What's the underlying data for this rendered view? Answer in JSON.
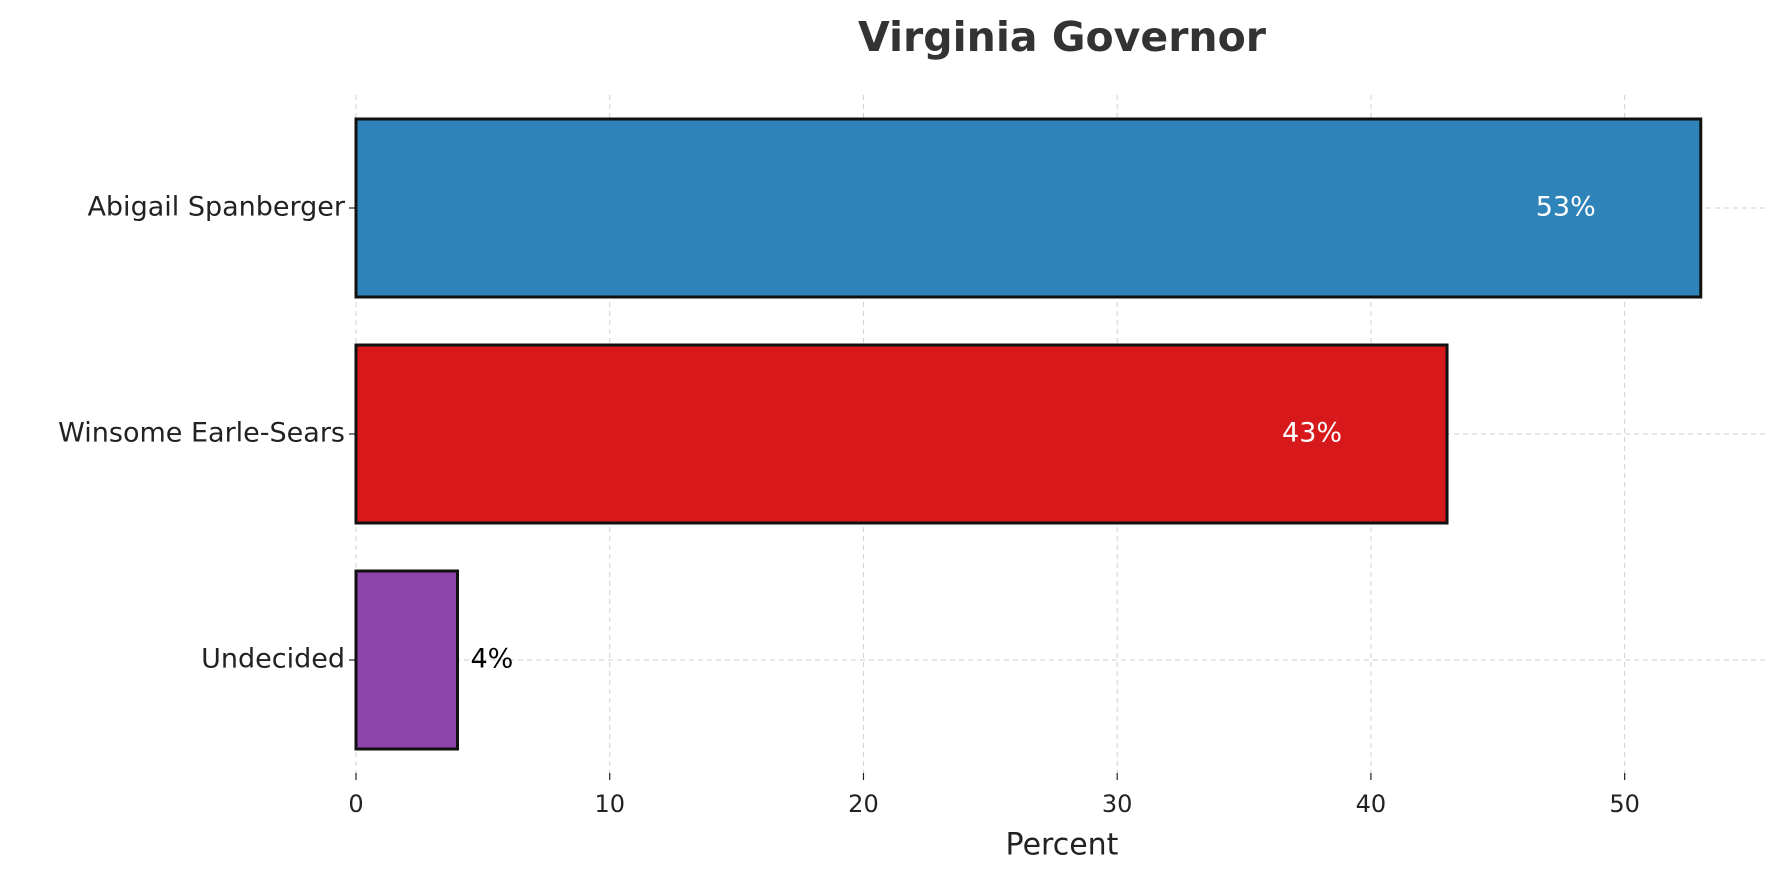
{
  "chart_data": {
    "type": "barh",
    "title": "Virginia Governor",
    "x_label": "Percent",
    "categories": [
      "Abigail Spanberger",
      "Winsome Earle-Sears",
      "Undecided"
    ],
    "values": [
      53,
      43,
      4
    ],
    "value_labels": [
      "53%",
      "43%",
      "4%"
    ],
    "colors": [
      "#2e83b9",
      "#d7191c",
      "#8e44ad"
    ],
    "xlim": [
      0,
      55.65
    ],
    "xticks": [
      0,
      10,
      20,
      30,
      40,
      50
    ],
    "grid": true
  }
}
